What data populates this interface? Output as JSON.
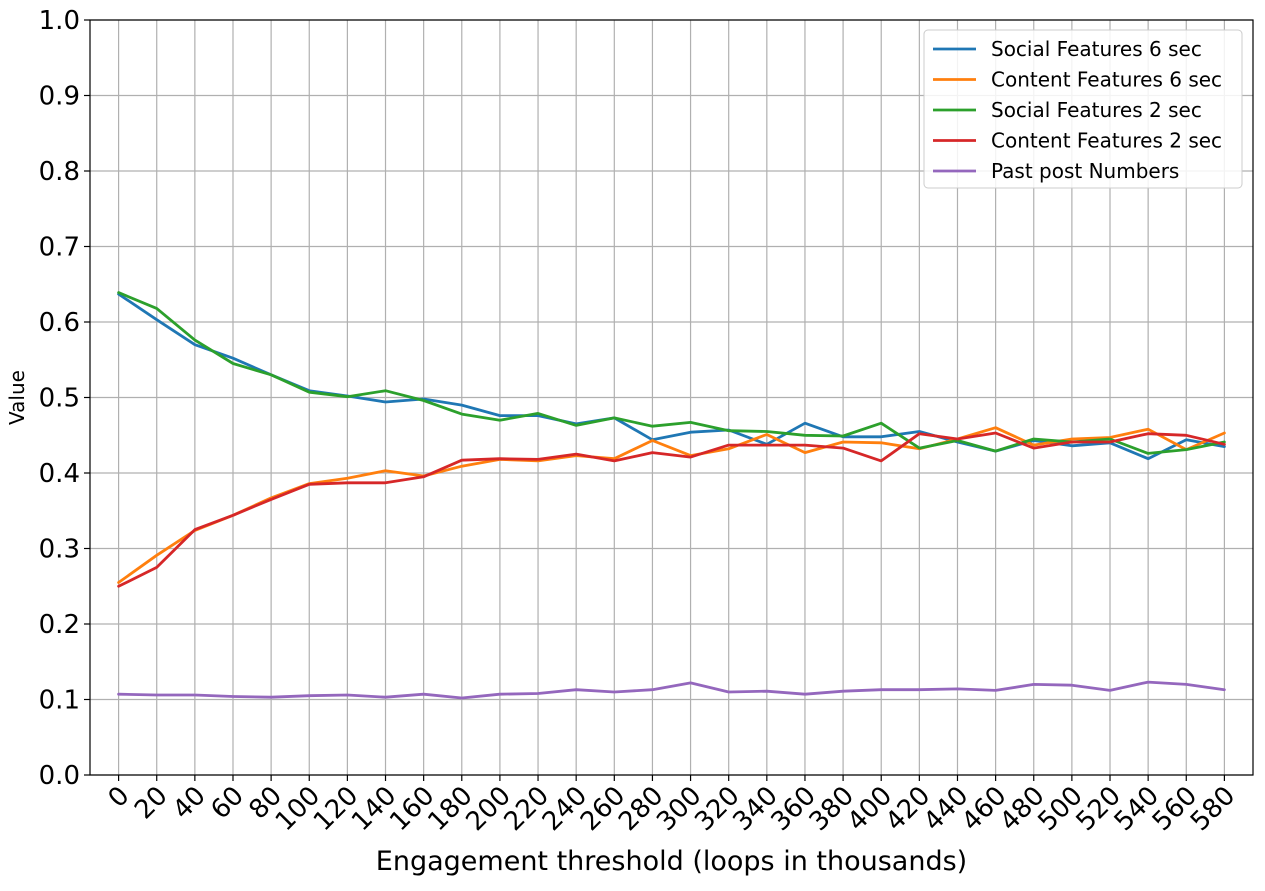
{
  "chart_data": {
    "type": "line",
    "title": "",
    "xlabel": "Engagement threshold (loops in thousands)",
    "ylabel": "Value",
    "ylim": [
      0.0,
      1.0
    ],
    "xlim": [
      -15,
      595
    ],
    "grid": true,
    "legend_position": "top-right",
    "x": [
      0,
      20,
      40,
      60,
      80,
      100,
      120,
      140,
      160,
      180,
      200,
      220,
      240,
      260,
      280,
      300,
      320,
      340,
      360,
      380,
      400,
      420,
      440,
      460,
      480,
      500,
      520,
      540,
      560,
      580
    ],
    "x_tick_labels": [
      "0",
      "20",
      "40",
      "60",
      "80",
      "100",
      "120",
      "140",
      "160",
      "180",
      "200",
      "220",
      "240",
      "260",
      "280",
      "300",
      "320",
      "340",
      "360",
      "380",
      "400",
      "420",
      "440",
      "460",
      "480",
      "500",
      "520",
      "540",
      "560",
      "580"
    ],
    "y_ticks": [
      0.0,
      0.1,
      0.2,
      0.3,
      0.4,
      0.5,
      0.6,
      0.7,
      0.8,
      0.9,
      1.0
    ],
    "y_tick_labels": [
      "0.0",
      "0.1",
      "0.2",
      "0.3",
      "0.4",
      "0.5",
      "0.6",
      "0.7",
      "0.8",
      "0.9",
      "1.0"
    ],
    "series": [
      {
        "name": "Social Features 6 sec",
        "color": "#1f77b4",
        "values": [
          0.637,
          0.603,
          0.57,
          0.552,
          0.53,
          0.509,
          0.502,
          0.494,
          0.498,
          0.49,
          0.476,
          0.476,
          0.465,
          0.473,
          0.444,
          0.454,
          0.457,
          0.438,
          0.466,
          0.448,
          0.448,
          0.455,
          0.441,
          0.429,
          0.443,
          0.436,
          0.44,
          0.419,
          0.444,
          0.435
        ]
      },
      {
        "name": "Content Features 6 sec",
        "color": "#ff7f0e",
        "values": [
          0.255,
          0.291,
          0.324,
          0.344,
          0.367,
          0.386,
          0.393,
          0.403,
          0.396,
          0.409,
          0.418,
          0.416,
          0.423,
          0.419,
          0.443,
          0.423,
          0.432,
          0.451,
          0.427,
          0.441,
          0.44,
          0.432,
          0.445,
          0.46,
          0.437,
          0.445,
          0.447,
          0.458,
          0.431,
          0.453
        ]
      },
      {
        "name": "Social Features 2 sec",
        "color": "#2ca02c",
        "values": [
          0.639,
          0.618,
          0.576,
          0.545,
          0.53,
          0.507,
          0.501,
          0.509,
          0.496,
          0.478,
          0.47,
          0.479,
          0.463,
          0.473,
          0.462,
          0.467,
          0.456,
          0.455,
          0.45,
          0.449,
          0.466,
          0.433,
          0.443,
          0.429,
          0.445,
          0.441,
          0.445,
          0.426,
          0.431,
          0.441
        ]
      },
      {
        "name": "Content Features 2 sec",
        "color": "#d62728",
        "values": [
          0.25,
          0.275,
          0.325,
          0.344,
          0.365,
          0.385,
          0.387,
          0.387,
          0.395,
          0.417,
          0.419,
          0.418,
          0.425,
          0.416,
          0.427,
          0.421,
          0.437,
          0.437,
          0.437,
          0.433,
          0.416,
          0.452,
          0.445,
          0.453,
          0.433,
          0.441,
          0.441,
          0.452,
          0.45,
          0.438
        ]
      },
      {
        "name": "Past post Numbers",
        "color": "#9467bd",
        "values": [
          0.107,
          0.106,
          0.106,
          0.104,
          0.103,
          0.105,
          0.106,
          0.103,
          0.107,
          0.102,
          0.107,
          0.108,
          0.113,
          0.11,
          0.113,
          0.122,
          0.11,
          0.111,
          0.107,
          0.111,
          0.113,
          0.113,
          0.114,
          0.112,
          0.12,
          0.119,
          0.112,
          0.123,
          0.12,
          0.113
        ]
      }
    ]
  }
}
